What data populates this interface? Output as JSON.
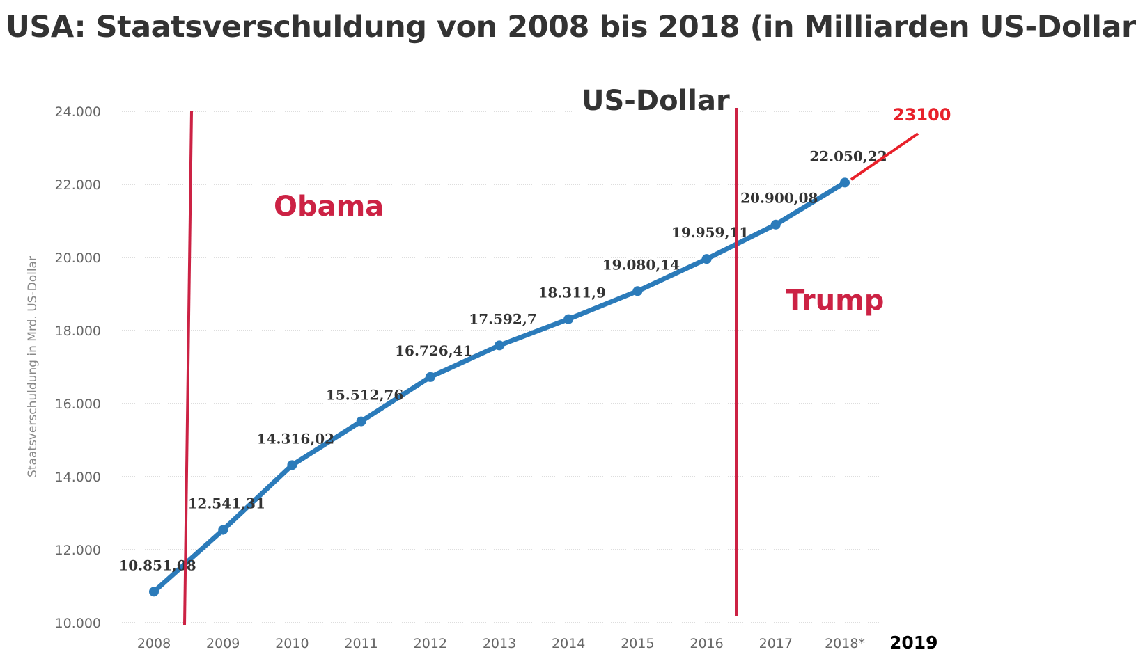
{
  "chart_data": {
    "type": "line",
    "title": "USA: Staatsverschuldung von 2008 bis 2018 (in Milliarden US-Dollar",
    "title_overlay": "US-Dollar",
    "ylabel": "Staatsverschuldung in Mrd. US-Dollar",
    "xlabel": "",
    "categories": [
      "2008",
      "2009",
      "2010",
      "2011",
      "2012",
      "2013",
      "2014",
      "2015",
      "2016",
      "2017",
      "2018*"
    ],
    "values": [
      10851.08,
      12541.31,
      14316.02,
      15512.76,
      16726.41,
      17592.7,
      18311.9,
      19080.14,
      19959.11,
      20900.08,
      22050.22
    ],
    "data_labels": [
      "10.851,08",
      "12.541,31",
      "14.316,02",
      "15.512,76",
      "16.726,41",
      "17.592,7",
      "18.311,9",
      "19.080,14",
      "19.959,11",
      "20.900,08",
      "22.050,22"
    ],
    "ylim": [
      10000,
      24000
    ],
    "yticks": [
      10000,
      12000,
      14000,
      16000,
      18000,
      20000,
      22000,
      24000
    ],
    "ytick_labels": [
      "10.000",
      "12.000",
      "14.000",
      "16.000",
      "18.000",
      "20.000",
      "22.000",
      "24.000"
    ],
    "grid": true,
    "series_color": "#2b7bba",
    "annotations": {
      "obama": "Obama",
      "trump": "Trump",
      "projection_value": "23100",
      "projection_year": "2019",
      "annotation_color": "#cc2244",
      "projection_color": "#e8202a"
    }
  }
}
